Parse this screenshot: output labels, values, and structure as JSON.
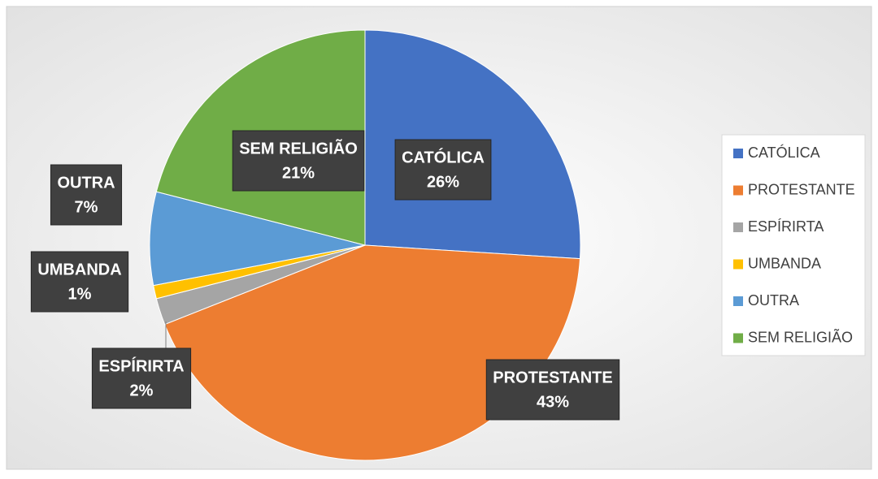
{
  "chart_data": {
    "type": "pie",
    "categories": [
      "CATÓLICA",
      "PROTESTANTE",
      "ESPÍRIRTA",
      "UMBANDA",
      "OUTRA",
      "SEM RELIGIÃO"
    ],
    "values": [
      26,
      43,
      2,
      1,
      7,
      21
    ],
    "value_labels": [
      "26%",
      "43%",
      "2%",
      "1%",
      "7%",
      "21%"
    ],
    "colors": [
      "#4472c4",
      "#ed7d31",
      "#a5a5a5",
      "#ffc000",
      "#5b9bd5",
      "#70ad47"
    ],
    "legend": "right"
  }
}
